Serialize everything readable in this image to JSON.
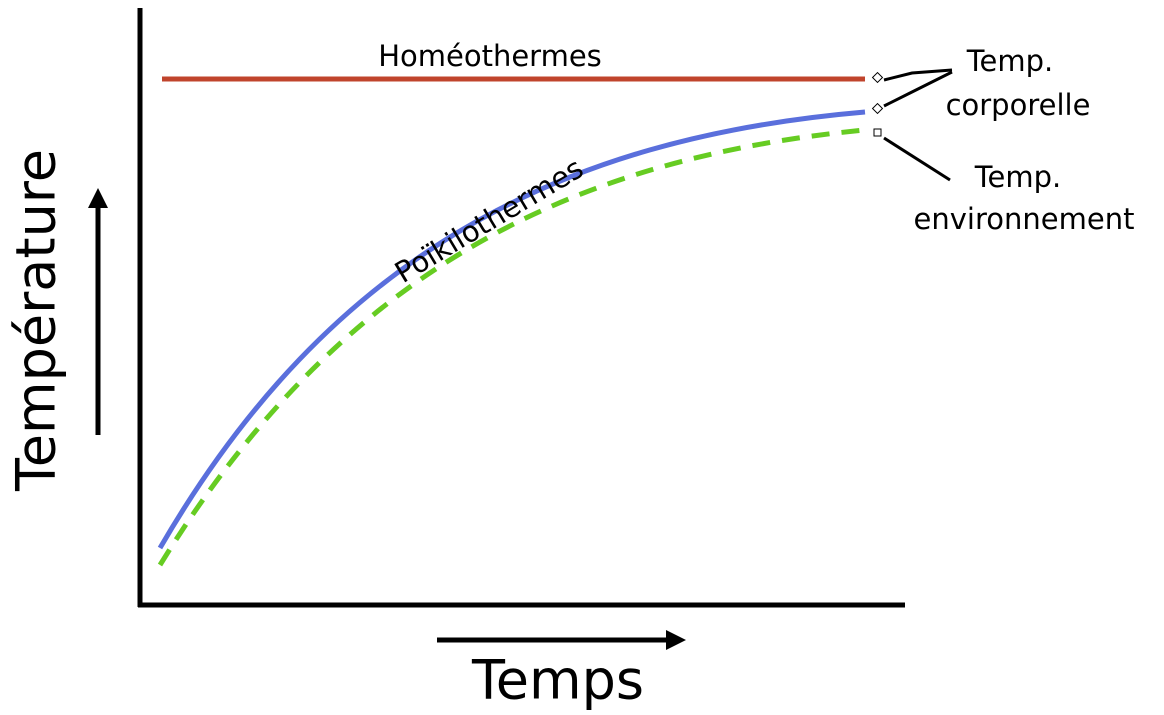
{
  "axes": {
    "y_label": "Température",
    "x_label": "Temps"
  },
  "curves": [
    {
      "label": "Homéothermes"
    },
    {
      "label": "Poïkilothermes"
    }
  ],
  "annotations": [
    {
      "lines": [
        "Temp.",
        "corporelle"
      ]
    },
    {
      "lines": [
        "Temp.",
        "environnement"
      ]
    }
  ]
}
